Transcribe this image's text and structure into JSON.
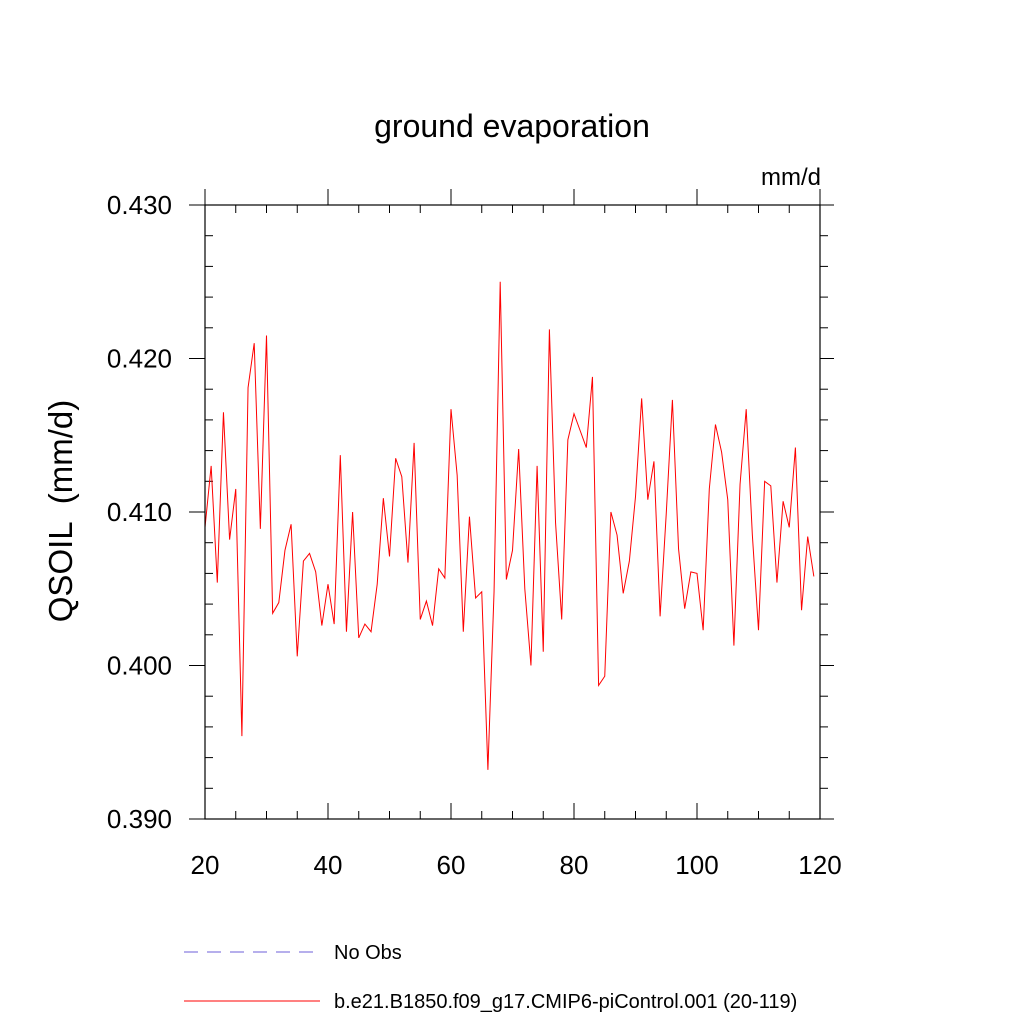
{
  "chart_data": {
    "type": "line",
    "title": "ground evaporation",
    "units": "mm/d",
    "ylabel": "QSOIL  (mm/d)",
    "xlabel": "",
    "xlim": [
      20,
      120
    ],
    "ylim": [
      0.39,
      0.43
    ],
    "x_ticks": [
      20,
      40,
      60,
      80,
      100,
      120
    ],
    "x_tick_labels": [
      "20",
      "40",
      "60",
      "80",
      "100",
      "120"
    ],
    "x_minor_step": 5,
    "y_ticks": [
      0.39,
      0.4,
      0.41,
      0.42,
      0.43
    ],
    "y_tick_labels": [
      "0.390",
      "0.400",
      "0.410",
      "0.420",
      "0.430"
    ],
    "y_minor_step": 0.002,
    "grid": false,
    "legend_position": "bottom-left",
    "series": [
      {
        "name": "b.e21.B1850.f09_g17.CMIP6-piControl.001 (20-119)",
        "color": "#ff0000",
        "style": "solid",
        "x": [
          20,
          21,
          22,
          23,
          24,
          25,
          26,
          27,
          28,
          29,
          30,
          31,
          32,
          33,
          34,
          35,
          36,
          37,
          38,
          39,
          40,
          41,
          42,
          43,
          44,
          45,
          46,
          47,
          48,
          49,
          50,
          51,
          52,
          53,
          54,
          55,
          56,
          57,
          58,
          59,
          60,
          61,
          62,
          63,
          64,
          65,
          66,
          67,
          68,
          69,
          70,
          71,
          72,
          73,
          74,
          75,
          76,
          77,
          78,
          79,
          80,
          81,
          82,
          83,
          84,
          85,
          86,
          87,
          88,
          89,
          90,
          91,
          92,
          93,
          94,
          95,
          96,
          97,
          98,
          99,
          100,
          101,
          102,
          103,
          104,
          105,
          106,
          107,
          108,
          109,
          110,
          111,
          112,
          113,
          114,
          115,
          116,
          117,
          118,
          119
        ],
        "values": [
          0.409,
          0.413,
          0.4054,
          0.4165,
          0.4082,
          0.4115,
          0.3954,
          0.4181,
          0.421,
          0.4089,
          0.4215,
          0.4034,
          0.4041,
          0.4075,
          0.4092,
          0.4006,
          0.4068,
          0.4073,
          0.4061,
          0.4026,
          0.4053,
          0.4027,
          0.4137,
          0.4022,
          0.41,
          0.4018,
          0.4027,
          0.4022,
          0.4053,
          0.4109,
          0.4071,
          0.4135,
          0.4123,
          0.4067,
          0.4145,
          0.403,
          0.4042,
          0.4026,
          0.4063,
          0.4057,
          0.4167,
          0.4124,
          0.4022,
          0.4097,
          0.4044,
          0.4048,
          0.3932,
          0.4048,
          0.425,
          0.4056,
          0.4075,
          0.4141,
          0.405,
          0.4,
          0.413,
          0.4009,
          0.4219,
          0.4093,
          0.403,
          0.4147,
          0.4164,
          0.4153,
          0.4142,
          0.4188,
          0.3987,
          0.3993,
          0.41,
          0.4085,
          0.4047,
          0.4068,
          0.411,
          0.4174,
          0.4108,
          0.4133,
          0.4032,
          0.4099,
          0.4173,
          0.4076,
          0.4037,
          0.4061,
          0.406,
          0.4023,
          0.4115,
          0.4157,
          0.4139,
          0.4108,
          0.4013,
          0.4118,
          0.4167,
          0.4085,
          0.4023,
          0.412,
          0.4117,
          0.4054,
          0.4107,
          0.409,
          0.4142,
          0.4036,
          0.4084,
          0.4058
        ]
      },
      {
        "name": "No Obs",
        "color": "#6e5fd8",
        "style": "dashed",
        "x": [],
        "values": []
      }
    ]
  }
}
